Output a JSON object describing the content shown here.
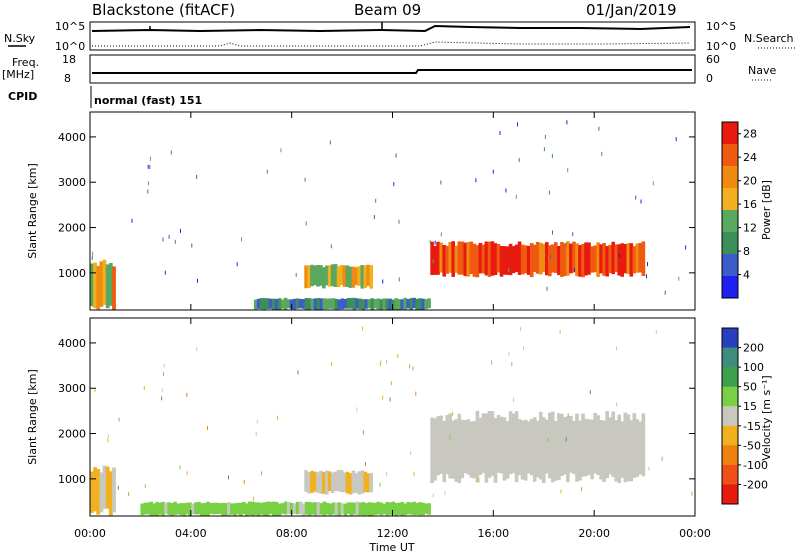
{
  "header": {
    "station": "Blackstone (fitACF)",
    "beam": "Beam 09",
    "date": "01/Jan/2019"
  },
  "panels": {
    "nsky": {
      "left_label": "N.Sky",
      "right_label": "N.Search",
      "left_top": "10^5",
      "left_bottom": "10^0",
      "right_top": "10^5",
      "right_bottom": "10^0"
    },
    "freq": {
      "left_label_1": "Freq.",
      "left_label_2": "[MHz]",
      "left_top": "18",
      "left_bottom": "8",
      "right_label": "Nave",
      "right_top": "60",
      "right_bottom": "0"
    },
    "cpid": {
      "label": "CPID",
      "text": "normal (fast) 151"
    }
  },
  "chart_data": [
    {
      "type": "heatmap",
      "title": "",
      "xlabel": "",
      "ylabel": "Slant Range [km]",
      "x_ticks": [
        "00:00",
        "04:00",
        "08:00",
        "12:00",
        "16:00",
        "20:00",
        "00:00"
      ],
      "xlim": [
        0,
        24
      ],
      "y_ticks": [
        1000,
        2000,
        3000,
        4000
      ],
      "ylim": [
        180,
        4550
      ],
      "colorbar": {
        "label": "Power [dB]",
        "ticks": [
          4,
          8,
          12,
          16,
          20,
          24,
          28
        ],
        "range": [
          0,
          30
        ],
        "colors": [
          "#1f1ff0",
          "#3c5cc8",
          "#3d8f5a",
          "#5aa860",
          "#f0b020",
          "#f08a10",
          "#f05a10",
          "#e81a10"
        ]
      },
      "regions": [
        {
          "t0": 0.0,
          "t1": 1.0,
          "r0": 180,
          "r1": 1300,
          "level": 18
        },
        {
          "t0": 8.5,
          "t1": 11.2,
          "r0": 650,
          "r1": 1200,
          "level": 16
        },
        {
          "t0": 13.5,
          "t1": 22.0,
          "r0": 900,
          "r1": 1700,
          "level": 26
        },
        {
          "t0": 6.5,
          "t1": 13.5,
          "r0": 180,
          "r1": 450,
          "level": 10
        }
      ]
    },
    {
      "type": "heatmap",
      "title": "",
      "xlabel": "Time UT",
      "ylabel": "Slant Range [km]",
      "x_ticks": [
        "00:00",
        "04:00",
        "08:00",
        "12:00",
        "16:00",
        "20:00",
        "00:00"
      ],
      "xlim": [
        0,
        24
      ],
      "y_ticks": [
        1000,
        2000,
        3000,
        4000
      ],
      "ylim": [
        180,
        4550
      ],
      "colorbar": {
        "label": "Velocity [m s⁻¹]",
        "ticks": [
          "200",
          "100",
          "50",
          "15",
          "-15",
          "-50",
          "-100",
          "-200"
        ],
        "range": [
          -250,
          250
        ],
        "colors": [
          "#2a3fc0",
          "#3e8c7e",
          "#3ca04c",
          "#7ad044",
          "#c8c8c0",
          "#f0b020",
          "#f08010",
          "#f05018",
          "#e81a10"
        ]
      },
      "regions": [
        {
          "t0": 0.0,
          "t1": 1.0,
          "r0": 180,
          "r1": 1300,
          "level": -30
        },
        {
          "t0": 8.5,
          "t1": 11.2,
          "r0": 650,
          "r1": 1200,
          "level": -20
        },
        {
          "t0": 13.5,
          "t1": 22.0,
          "r0": 900,
          "r1": 2500,
          "level": 0
        },
        {
          "t0": 2.0,
          "t1": 13.5,
          "r0": 180,
          "r1": 500,
          "level": 40
        }
      ]
    }
  ]
}
